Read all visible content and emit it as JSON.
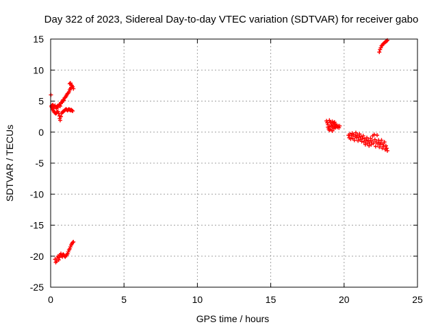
{
  "chart_data": {
    "type": "scatter",
    "title": "Day 322 of 2023, Sidereal Day-to-day VTEC variation (SDTVAR) for receiver gabo",
    "xlabel": "GPS time / hours",
    "ylabel": "SDTVAR / TECUs",
    "xlim": [
      0,
      25
    ],
    "ylim": [
      -25,
      15
    ],
    "xticks": [
      0,
      5,
      10,
      15,
      20,
      25
    ],
    "yticks": [
      -25,
      -20,
      -15,
      -10,
      -5,
      0,
      5,
      10,
      15
    ],
    "xtick_labels": [
      "0",
      "5",
      "10",
      "15",
      "20",
      "25"
    ],
    "ytick_labels": [
      "-25",
      "-20",
      "-15",
      "-10",
      "-5",
      "0",
      "5",
      "10",
      "15"
    ],
    "grid": true,
    "marker_color": "#ff0000",
    "marker": "plus",
    "series": [
      {
        "points": [
          [
            0.02,
            6.0
          ],
          [
            0.05,
            4.2
          ],
          [
            0.08,
            4.0
          ],
          [
            0.12,
            3.8
          ],
          [
            0.15,
            3.6
          ],
          [
            0.2,
            3.4
          ],
          [
            0.25,
            3.2
          ],
          [
            0.3,
            3.1
          ],
          [
            0.35,
            3.0
          ],
          [
            0.4,
            3.1
          ],
          [
            0.45,
            3.2
          ],
          [
            0.5,
            3.3
          ],
          [
            0.55,
            3.0
          ],
          [
            0.6,
            2.6
          ],
          [
            0.62,
            2.2
          ],
          [
            0.65,
            1.9
          ],
          [
            0.7,
            2.5
          ],
          [
            0.75,
            3.0
          ],
          [
            0.8,
            3.2
          ],
          [
            0.85,
            3.3
          ],
          [
            0.9,
            3.4
          ],
          [
            0.95,
            3.5
          ],
          [
            1.0,
            3.6
          ],
          [
            1.05,
            3.7
          ],
          [
            1.1,
            3.6
          ],
          [
            1.15,
            3.5
          ],
          [
            1.2,
            3.6
          ],
          [
            1.25,
            3.7
          ],
          [
            1.3,
            3.6
          ],
          [
            1.35,
            3.5
          ],
          [
            1.4,
            3.6
          ],
          [
            1.45,
            3.5
          ],
          [
            1.5,
            3.4
          ],
          [
            0.1,
            4.3
          ],
          [
            0.15,
            4.4
          ],
          [
            0.2,
            4.2
          ],
          [
            0.25,
            4.1
          ],
          [
            0.3,
            4.3
          ],
          [
            0.35,
            4.0
          ],
          [
            0.4,
            3.8
          ],
          [
            0.45,
            4.2
          ],
          [
            0.5,
            4.0
          ],
          [
            0.55,
            4.3
          ],
          [
            0.6,
            4.5
          ],
          [
            0.65,
            4.2
          ],
          [
            0.7,
            4.6
          ],
          [
            0.75,
            4.8
          ],
          [
            0.8,
            5.0
          ],
          [
            0.85,
            5.2
          ],
          [
            0.9,
            5.1
          ],
          [
            0.95,
            5.5
          ],
          [
            1.0,
            5.6
          ],
          [
            1.05,
            5.8
          ],
          [
            1.1,
            6.0
          ],
          [
            1.15,
            6.2
          ],
          [
            1.2,
            6.3
          ],
          [
            1.25,
            6.5
          ],
          [
            1.3,
            6.8
          ],
          [
            1.35,
            7.0
          ],
          [
            1.4,
            7.2
          ],
          [
            1.45,
            7.5
          ],
          [
            1.5,
            7.3
          ],
          [
            1.55,
            7.0
          ],
          [
            1.3,
            7.8
          ],
          [
            1.35,
            7.9
          ],
          [
            1.4,
            7.6
          ]
        ]
      },
      {
        "points": [
          [
            0.3,
            -20.5
          ],
          [
            0.35,
            -21.0
          ],
          [
            0.4,
            -20.8
          ],
          [
            0.45,
            -20.3
          ],
          [
            0.5,
            -20.0
          ],
          [
            0.55,
            -20.6
          ],
          [
            0.6,
            -20.2
          ],
          [
            0.65,
            -19.8
          ],
          [
            0.7,
            -19.6
          ],
          [
            0.75,
            -19.9
          ],
          [
            0.8,
            -20.1
          ],
          [
            0.85,
            -19.7
          ],
          [
            0.9,
            -19.8
          ],
          [
            0.95,
            -20.0
          ],
          [
            1.0,
            -20.1
          ],
          [
            1.05,
            -19.9
          ],
          [
            1.1,
            -19.8
          ],
          [
            1.15,
            -19.6
          ],
          [
            1.2,
            -19.3
          ],
          [
            1.25,
            -19.0
          ],
          [
            1.3,
            -18.8
          ],
          [
            1.35,
            -18.5
          ],
          [
            1.4,
            -18.2
          ],
          [
            1.45,
            -18.0
          ],
          [
            1.5,
            -17.8
          ],
          [
            1.55,
            -17.7
          ]
        ]
      },
      {
        "points": [
          [
            18.8,
            1.8
          ],
          [
            18.85,
            1.5
          ],
          [
            18.9,
            1.2
          ],
          [
            18.9,
            0.8
          ],
          [
            18.95,
            0.5
          ],
          [
            19.0,
            0.3
          ],
          [
            19.0,
            1.9
          ],
          [
            19.05,
            1.6
          ],
          [
            19.1,
            1.0
          ],
          [
            19.1,
            0.4
          ],
          [
            19.15,
            1.4
          ],
          [
            19.2,
            0.8
          ],
          [
            19.2,
            1.7
          ],
          [
            19.25,
            1.2
          ],
          [
            19.3,
            0.6
          ],
          [
            19.3,
            1.5
          ],
          [
            19.35,
            1.0
          ],
          [
            19.4,
            0.7
          ],
          [
            19.4,
            1.3
          ],
          [
            19.45,
            0.9
          ],
          [
            19.5,
            1.1
          ],
          [
            19.55,
            0.8
          ],
          [
            19.6,
            1.0
          ],
          [
            19.65,
            0.7
          ],
          [
            19.7,
            1.0
          ],
          [
            19.0,
            0.9
          ],
          [
            19.2,
            0.2
          ],
          [
            19.35,
            1.6
          ]
        ]
      },
      {
        "points": [
          [
            20.3,
            -0.5
          ],
          [
            20.35,
            -0.9
          ],
          [
            20.4,
            -0.3
          ],
          [
            20.45,
            -1.1
          ],
          [
            20.5,
            -0.6
          ],
          [
            20.55,
            -0.2
          ],
          [
            20.6,
            -1.0
          ],
          [
            20.65,
            -0.4
          ],
          [
            20.7,
            -1.3
          ],
          [
            20.75,
            -0.7
          ],
          [
            20.8,
            -0.1
          ],
          [
            20.85,
            -0.9
          ],
          [
            20.9,
            -0.5
          ],
          [
            20.95,
            -1.4
          ],
          [
            21.0,
            -0.8
          ],
          [
            21.05,
            -0.3
          ],
          [
            21.1,
            -1.2
          ],
          [
            21.15,
            -0.7
          ],
          [
            21.2,
            -1.5
          ],
          [
            21.25,
            -1.0
          ],
          [
            21.3,
            -0.6
          ],
          [
            21.35,
            -1.6
          ],
          [
            21.4,
            -1.1
          ],
          [
            21.45,
            -2.0
          ],
          [
            21.5,
            -1.4
          ],
          [
            21.55,
            -0.9
          ],
          [
            21.6,
            -1.8
          ],
          [
            21.65,
            -1.3
          ],
          [
            21.7,
            -2.2
          ],
          [
            21.75,
            -1.6
          ],
          [
            21.8,
            -1.0
          ],
          [
            21.85,
            -2.0
          ],
          [
            21.9,
            -1.4
          ],
          [
            21.95,
            -0.6
          ],
          [
            22.0,
            -1.8
          ],
          [
            22.05,
            -0.4
          ],
          [
            22.1,
            -1.2
          ],
          [
            22.15,
            -2.3
          ],
          [
            22.2,
            -1.6
          ],
          [
            22.25,
            -0.5
          ],
          [
            22.3,
            -1.9
          ],
          [
            22.35,
            -1.3
          ],
          [
            22.4,
            -2.4
          ],
          [
            22.45,
            -1.7
          ],
          [
            22.5,
            -2.0
          ],
          [
            22.55,
            -1.3
          ],
          [
            22.6,
            -2.6
          ],
          [
            22.65,
            -1.9
          ],
          [
            22.7,
            -2.3
          ],
          [
            22.75,
            -1.6
          ],
          [
            22.8,
            -2.8
          ],
          [
            22.85,
            -2.2
          ],
          [
            22.9,
            -2.6
          ],
          [
            22.95,
            -3.0
          ]
        ]
      },
      {
        "points": [
          [
            22.4,
            12.9
          ],
          [
            22.45,
            13.3
          ],
          [
            22.5,
            13.6
          ],
          [
            22.55,
            13.9
          ],
          [
            22.6,
            14.0
          ],
          [
            22.65,
            14.2
          ],
          [
            22.7,
            14.3
          ],
          [
            22.75,
            14.4
          ],
          [
            22.8,
            14.5
          ],
          [
            22.85,
            14.6
          ],
          [
            22.9,
            14.7
          ],
          [
            22.95,
            14.8
          ]
        ]
      }
    ]
  }
}
